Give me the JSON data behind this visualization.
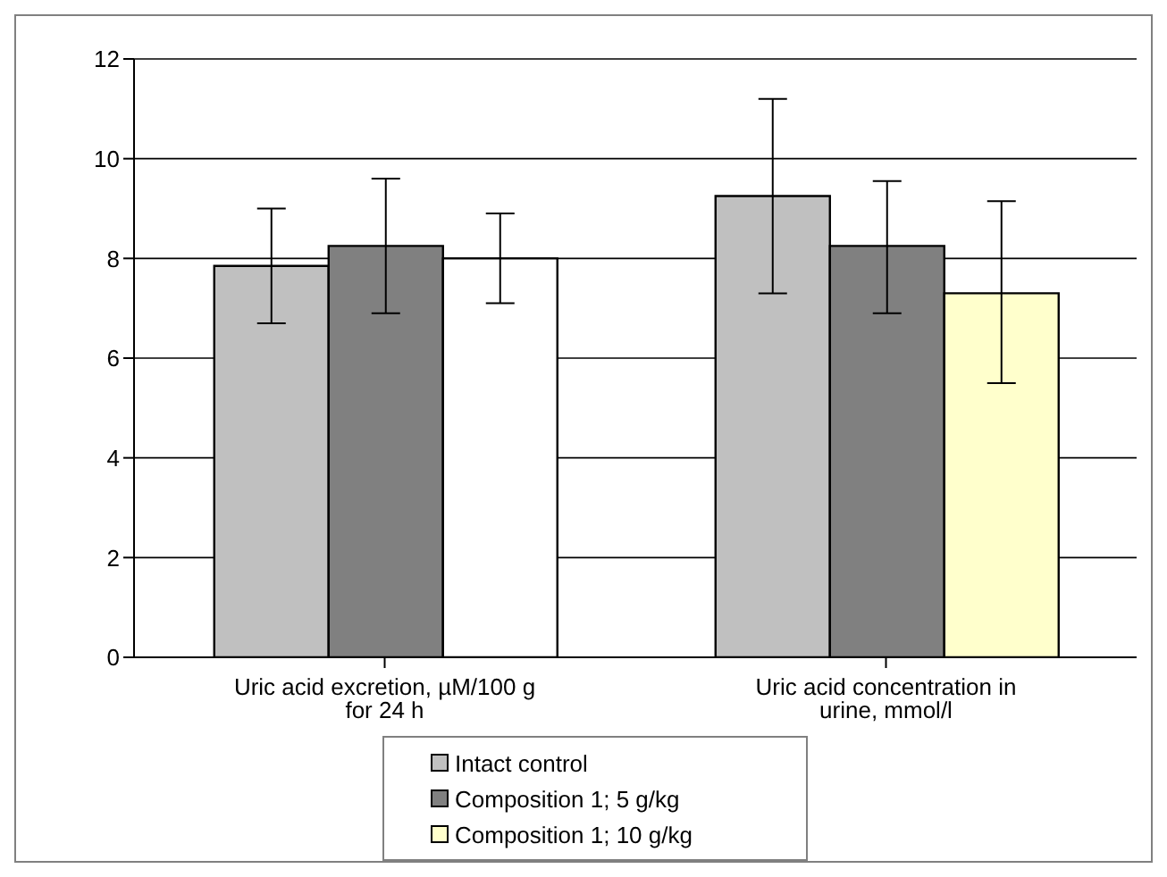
{
  "chart_data": {
    "type": "bar",
    "categories": [
      "Uric acid excretion, µM/100 g for 24 h",
      "Uric acid concentration in urine, mmol/l"
    ],
    "series": [
      {
        "name": "Intact control",
        "color": "#c0c0c0",
        "values": [
          7.85,
          9.25
        ],
        "errors": [
          [
            6.7,
            9.0
          ],
          [
            7.3,
            11.2
          ]
        ]
      },
      {
        "name": "Composition 1; 5 g/kg",
        "color": "#808080",
        "values": [
          8.25,
          8.25
        ],
        "errors": [
          [
            6.9,
            9.6
          ],
          [
            6.9,
            9.55
          ]
        ]
      },
      {
        "name": "Composition 1; 10 g/kg",
        "color": "#ffffcc",
        "colors": [
          "#ffffff",
          "#ffffcc"
        ],
        "values": [
          8.0,
          7.3
        ],
        "errors": [
          [
            7.1,
            8.9
          ],
          [
            5.5,
            9.15
          ]
        ]
      }
    ],
    "ylim": [
      0,
      12
    ],
    "yticks": [
      0,
      2,
      4,
      6,
      8,
      10,
      12
    ],
    "grid": "y",
    "legend": "bottom"
  }
}
